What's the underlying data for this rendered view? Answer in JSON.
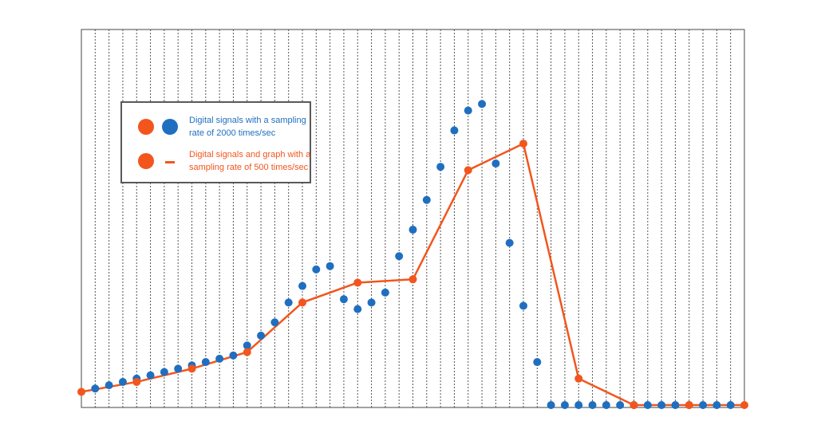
{
  "colors": {
    "high_rate": "#1f6fc0",
    "low_rate": "#f2561d",
    "grid": "#555555",
    "frame": "#444444"
  },
  "legend": {
    "high_rate_label_line1": "Digital signals with a sampling",
    "high_rate_label_line2": "rate of 2000 times/sec",
    "low_rate_label_line1": "Digital signals and graph with a",
    "low_rate_label_line2": "sampling rate of 500 times/sec"
  },
  "chart_data": {
    "type": "line",
    "title": "",
    "xlabel": "",
    "ylabel": "",
    "xlim": [
      0,
      48
    ],
    "ylim": [
      0,
      100
    ],
    "grid": "vertical dotted lines at every sample",
    "legend_placement": "upper-left",
    "series": [
      {
        "name": "Digital signals with a sampling rate of 2000 times/sec",
        "style": "dots",
        "x": [
          1,
          2,
          3,
          4,
          5,
          6,
          7,
          8,
          9,
          10,
          11,
          12,
          13,
          14,
          15,
          16,
          17,
          18,
          19,
          20,
          21,
          22,
          23,
          24,
          25,
          26,
          27,
          28,
          29,
          30,
          31,
          32,
          33,
          34,
          35,
          36,
          37,
          38,
          39,
          40,
          41,
          42,
          43,
          44,
          45,
          46,
          47
        ],
        "values": [
          5,
          6,
          7,
          8,
          9,
          10,
          11,
          12,
          13,
          14,
          15,
          18,
          21,
          25,
          31,
          36,
          41,
          42,
          32,
          29,
          31,
          34,
          45,
          53,
          62,
          72,
          83,
          89,
          91,
          73,
          49,
          30,
          13,
          0,
          0,
          0,
          0,
          0,
          0,
          0,
          0,
          0,
          0,
          0,
          0,
          0,
          0
        ]
      },
      {
        "name": "Digital signals and graph with a sampling rate of 500 times/sec",
        "style": "line-with-dots",
        "x": [
          0,
          4,
          8,
          12,
          16,
          20,
          24,
          28,
          32,
          36,
          40,
          44,
          48
        ],
        "values": [
          4,
          7,
          11,
          16,
          31,
          37,
          38,
          71,
          79,
          8,
          0,
          0,
          0
        ]
      }
    ]
  }
}
